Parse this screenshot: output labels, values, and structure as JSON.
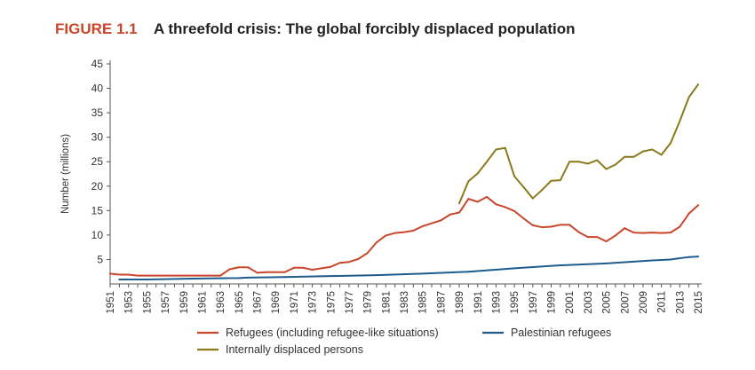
{
  "figure": {
    "label": "FIGURE 1.1",
    "title": "A threefold crisis: The global forcibly displaced population"
  },
  "colors": {
    "label": "#C8462A",
    "refugees": "#C8462A",
    "palestinian": "#1D5C8C",
    "idp": "#8A7A1A",
    "axis": "#555555"
  },
  "chart_data": {
    "type": "line",
    "title": "A threefold crisis: The global forcibly displaced population",
    "xlabel": "",
    "ylabel": "Number (millions)",
    "xlim": [
      1951,
      2015
    ],
    "ylim": [
      0,
      45
    ],
    "yticks": [
      5,
      10,
      15,
      20,
      25,
      30,
      35,
      40,
      45
    ],
    "xticks": [
      1951,
      1953,
      1955,
      1957,
      1959,
      1961,
      1963,
      1965,
      1967,
      1969,
      1971,
      1973,
      1975,
      1977,
      1979,
      1981,
      1983,
      1985,
      1987,
      1989,
      1991,
      1993,
      1995,
      1997,
      1999,
      2001,
      2003,
      2005,
      2007,
      2009,
      2011,
      2013,
      2015
    ],
    "grid": false,
    "legend_position": "bottom",
    "series": [
      {
        "name": "Refugees (including refugee-like situations)",
        "color_key": "refugees",
        "x": [
          1951,
          1952,
          1953,
          1954,
          1955,
          1956,
          1957,
          1958,
          1959,
          1960,
          1961,
          1962,
          1963,
          1964,
          1965,
          1966,
          1967,
          1968,
          1969,
          1970,
          1971,
          1972,
          1973,
          1974,
          1975,
          1976,
          1977,
          1978,
          1979,
          1980,
          1981,
          1982,
          1983,
          1984,
          1985,
          1986,
          1987,
          1988,
          1989,
          1990,
          1991,
          1992,
          1993,
          1994,
          1995,
          1996,
          1997,
          1998,
          1999,
          2000,
          2001,
          2002,
          2003,
          2004,
          2005,
          2006,
          2007,
          2008,
          2009,
          2010,
          2011,
          2012,
          2013,
          2014,
          2015
        ],
        "values": [
          2.1,
          1.9,
          1.9,
          1.7,
          1.7,
          1.7,
          1.7,
          1.7,
          1.7,
          1.7,
          1.7,
          1.7,
          1.7,
          3.0,
          3.4,
          3.4,
          2.3,
          2.4,
          2.4,
          2.4,
          3.3,
          3.3,
          2.9,
          3.2,
          3.5,
          4.3,
          4.5,
          5.1,
          6.3,
          8.5,
          9.9,
          10.4,
          10.6,
          10.9,
          11.8,
          12.4,
          13.0,
          14.2,
          14.6,
          17.4,
          16.8,
          17.8,
          16.3,
          15.7,
          14.9,
          13.4,
          12.0,
          11.6,
          11.7,
          12.1,
          12.1,
          10.6,
          9.6,
          9.6,
          8.7,
          9.9,
          11.4,
          10.5,
          10.4,
          10.5,
          10.4,
          10.5,
          11.7,
          14.4,
          16.1
        ]
      },
      {
        "name": "Palestinian refugees",
        "color_key": "palestinian",
        "x": [
          1952,
          1955,
          1960,
          1965,
          1966,
          1970,
          1975,
          1980,
          1985,
          1990,
          1995,
          2000,
          2005,
          2010,
          2012,
          2014,
          2015
        ],
        "values": [
          0.9,
          0.9,
          1.1,
          1.2,
          1.3,
          1.4,
          1.6,
          1.8,
          2.1,
          2.5,
          3.2,
          3.8,
          4.2,
          4.8,
          5.0,
          5.5,
          5.6
        ]
      },
      {
        "name": "Internally displaced persons",
        "color_key": "idp",
        "x": [
          1989,
          1990,
          1991,
          1992,
          1993,
          1994,
          1995,
          1996,
          1997,
          1998,
          1999,
          2000,
          2001,
          2002,
          2003,
          2004,
          2005,
          2006,
          2007,
          2008,
          2009,
          2010,
          2011,
          2012,
          2013,
          2014,
          2015
        ],
        "values": [
          16.5,
          21.0,
          22.6,
          25.0,
          27.5,
          27.8,
          22.0,
          19.8,
          17.5,
          19.2,
          21.1,
          21.2,
          25.0,
          25.0,
          24.6,
          25.3,
          23.5,
          24.4,
          26.0,
          26.0,
          27.1,
          27.5,
          26.4,
          28.8,
          33.3,
          38.2,
          40.8
        ]
      }
    ]
  },
  "legend": {
    "items": [
      {
        "label": "Refugees (including refugee-like situations)",
        "color_key": "refugees"
      },
      {
        "label": "Palestinian refugees",
        "color_key": "palestinian"
      },
      {
        "label": "Internally displaced persons",
        "color_key": "idp"
      }
    ]
  }
}
